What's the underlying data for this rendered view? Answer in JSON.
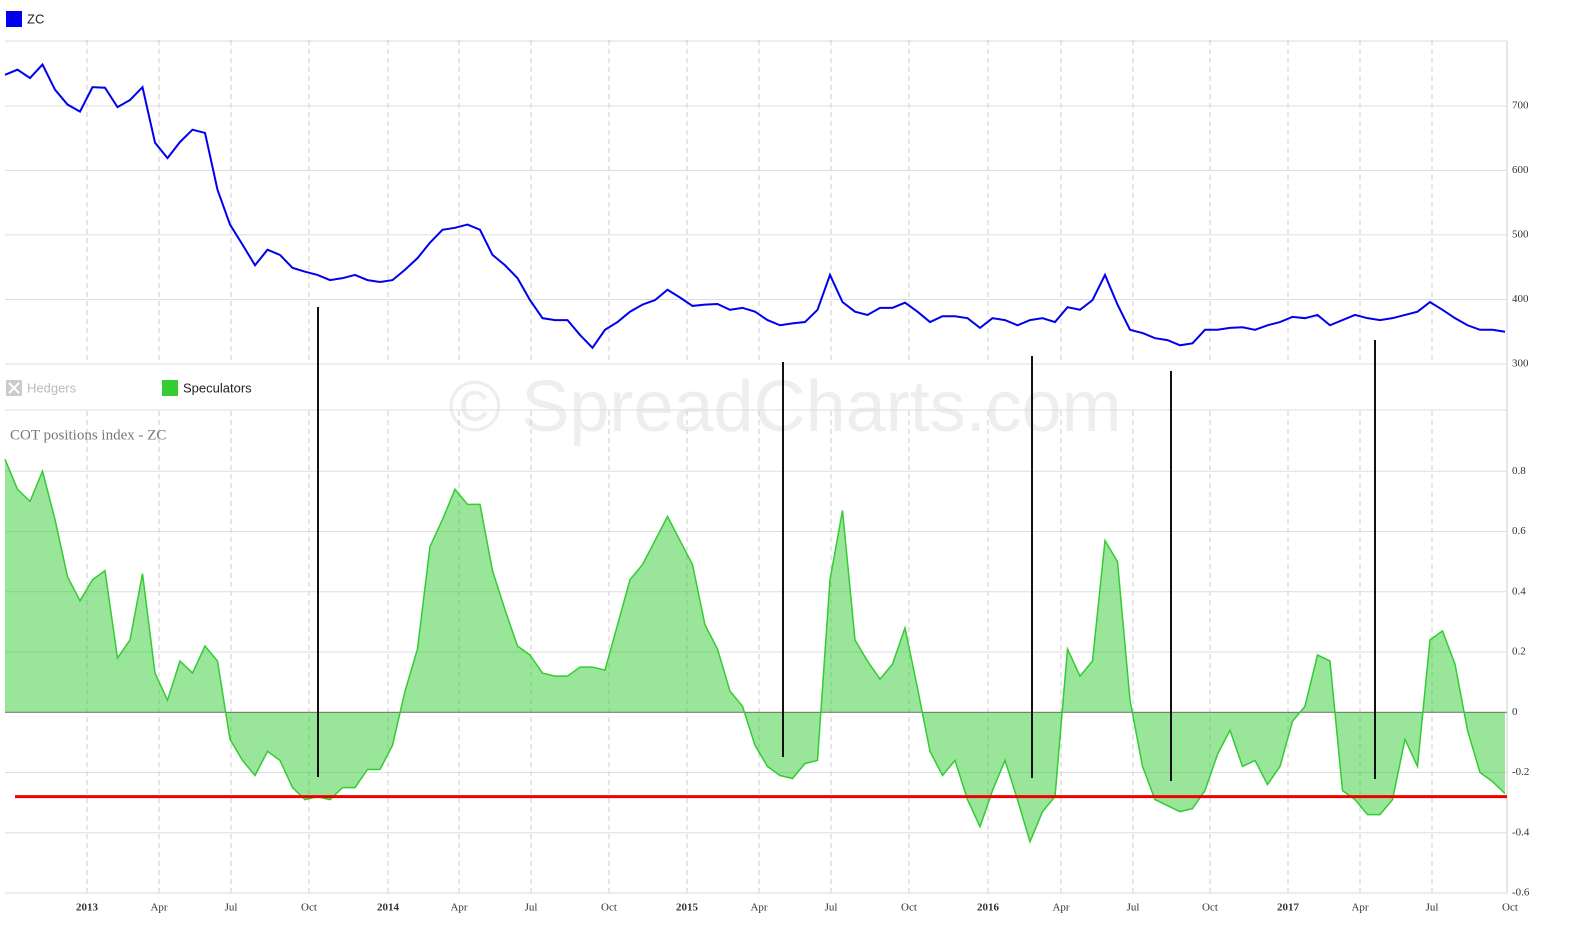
{
  "watermark": "© SpreadCharts.com",
  "chart_data": [
    {
      "type": "line",
      "series": [
        {
          "name": "ZC",
          "color": "#0000ee",
          "values": [
            748,
            756,
            743,
            764,
            725,
            702,
            691,
            729,
            728,
            698,
            709,
            729,
            643,
            619,
            644,
            663,
            658,
            570,
            516,
            485,
            453,
            477,
            469,
            449,
            443,
            438,
            430,
            433,
            438,
            430,
            427,
            430,
            446,
            464,
            488,
            508,
            511,
            516,
            508,
            469,
            453,
            433,
            399,
            371,
            368,
            368,
            345,
            325,
            353,
            365,
            381,
            392,
            399,
            415,
            403,
            390,
            392,
            393,
            384,
            387,
            381,
            368,
            360,
            363,
            365,
            384,
            438,
            396,
            381,
            376,
            387,
            387,
            395,
            381,
            365,
            374,
            374,
            371,
            356,
            371,
            368,
            360,
            368,
            371,
            365,
            388,
            384,
            399,
            438,
            392,
            353,
            348,
            340,
            337,
            329,
            332,
            353,
            353,
            356,
            357,
            353,
            360,
            365,
            373,
            371,
            376,
            360,
            368,
            376,
            371,
            368,
            371,
            376,
            381,
            396,
            384,
            371,
            360,
            353,
            353,
            350
          ]
        }
      ],
      "xlim": [
        0,
        120.2
      ],
      "ylim": [
        300,
        802
      ],
      "yticks": [
        300,
        400,
        500,
        600,
        700
      ],
      "grid": true
    },
    {
      "type": "area",
      "title": "COT positions index - ZC",
      "series": [
        {
          "name": "Hedgers",
          "color": "#cccccc",
          "hidden": true
        },
        {
          "name": "Speculators",
          "color": "#33cc33",
          "values": [
            0.84,
            0.74,
            0.7,
            0.8,
            0.64,
            0.45,
            0.37,
            0.44,
            0.47,
            0.18,
            0.24,
            0.46,
            0.13,
            0.04,
            0.17,
            0.13,
            0.22,
            0.17,
            -0.09,
            -0.16,
            -0.21,
            -0.13,
            -0.16,
            -0.25,
            -0.29,
            -0.28,
            -0.29,
            -0.25,
            -0.25,
            -0.19,
            -0.19,
            -0.11,
            0.07,
            0.21,
            0.55,
            0.64,
            0.74,
            0.69,
            0.69,
            0.47,
            0.34,
            0.22,
            0.19,
            0.13,
            0.12,
            0.12,
            0.15,
            0.15,
            0.14,
            0.29,
            0.44,
            0.49,
            0.57,
            0.65,
            0.57,
            0.49,
            0.29,
            0.21,
            0.07,
            0.02,
            -0.11,
            -0.18,
            -0.21,
            -0.22,
            -0.17,
            -0.16,
            0.44,
            0.67,
            0.24,
            0.17,
            0.11,
            0.16,
            0.28,
            0.08,
            -0.13,
            -0.21,
            -0.16,
            -0.29,
            -0.38,
            -0.26,
            -0.16,
            -0.29,
            -0.43,
            -0.33,
            -0.28,
            0.21,
            0.12,
            0.17,
            0.57,
            0.5,
            0.04,
            -0.18,
            -0.29,
            -0.31,
            -0.33,
            -0.32,
            -0.26,
            -0.14,
            -0.06,
            -0.18,
            -0.16,
            -0.24,
            -0.18,
            -0.03,
            0.02,
            0.19,
            0.17,
            -0.26,
            -0.29,
            -0.34,
            -0.34,
            -0.29,
            -0.09,
            -0.18,
            0.24,
            0.27,
            0.16,
            -0.06,
            -0.2,
            -0.23,
            -0.27
          ]
        }
      ],
      "reference_line": {
        "value": -0.28,
        "color": "#ee0000"
      },
      "xlim": [
        0,
        120.2
      ],
      "xticks": [
        {
          "value": 6.56,
          "label": "2013"
        },
        {
          "value": 12.32,
          "label": "Apr"
        },
        {
          "value": 18.08,
          "label": "Jul"
        },
        {
          "value": 24.32,
          "label": "Oct"
        },
        {
          "value": 30.64,
          "label": "2014"
        },
        {
          "value": 36.32,
          "label": "Apr"
        },
        {
          "value": 42.08,
          "label": "Jul"
        },
        {
          "value": 48.32,
          "label": "Oct"
        },
        {
          "value": 54.56,
          "label": "2015"
        },
        {
          "value": 60.32,
          "label": "Apr"
        },
        {
          "value": 66.08,
          "label": "Jul"
        },
        {
          "value": 72.32,
          "label": "Oct"
        },
        {
          "value": 78.64,
          "label": "2016"
        },
        {
          "value": 84.48,
          "label": "Apr"
        },
        {
          "value": 90.24,
          "label": "Jul"
        },
        {
          "value": 96.4,
          "label": "Oct"
        },
        {
          "value": 102.64,
          "label": "2017"
        },
        {
          "value": 108.4,
          "label": "Apr"
        },
        {
          "value": 114.16,
          "label": "Jul"
        },
        {
          "value": 120.4,
          "label": "Oct"
        }
      ],
      "ylim": [
        -0.6,
        1.0
      ],
      "yticks": [
        -0.6,
        -0.4,
        -0.2,
        0,
        0.2,
        0.4,
        0.6,
        0.8
      ],
      "grid": true
    }
  ]
}
